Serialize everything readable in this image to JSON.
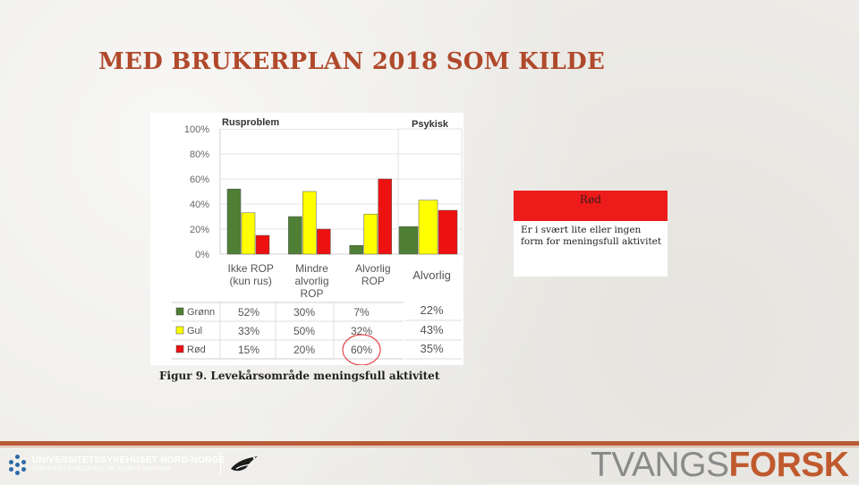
{
  "slide": {
    "title": "MED BRUKERPLAN 2018 SOM KILDE",
    "caption": "Figur 9. Levekårsområde meningsfull aktivitet"
  },
  "legend_box": {
    "heading": "Rød",
    "text_line1": "Er i svært lite eller ingen",
    "text_line2": "form for meningsfull aktivitet"
  },
  "footer": {
    "org_line1": "UNIVERSITETSSYKEHUSET NORD-NORGE",
    "org_line2": "UNIVERSITY HOSPITAL OF NORTH NORWAY",
    "brand_part1": "TVANGS",
    "brand_part2": "FORSK"
  },
  "chart_data": [
    {
      "type": "bar",
      "title": "Rusproblem",
      "categories": [
        [
          "Ikke ROP",
          "(kun rus)"
        ],
        [
          "Mindre",
          "alvorlig",
          "ROP"
        ],
        [
          "Alvorlig",
          "ROP"
        ]
      ],
      "series": [
        {
          "name": "Grønn",
          "color": "#4e7f35",
          "values": [
            52,
            30,
            7
          ],
          "labels": [
            "52%",
            "30%",
            "7%"
          ]
        },
        {
          "name": "Gul",
          "color": "#ffff00",
          "values": [
            33,
            50,
            32
          ],
          "labels": [
            "33%",
            "50%",
            "32%"
          ]
        },
        {
          "name": "Rød",
          "color": "#ee1111",
          "values": [
            15,
            20,
            60
          ],
          "labels": [
            "15%",
            "20%",
            "60%"
          ]
        }
      ],
      "yticks": [
        "100%",
        "80%",
        "60%",
        "40%",
        "20%",
        "0%"
      ],
      "ylim": [
        0,
        100
      ],
      "highlight": "Alvorlig ROP Rød 60%"
    },
    {
      "type": "bar",
      "title": "Psykisk",
      "categories": [
        [
          "Alvorlig"
        ]
      ],
      "series": [
        {
          "name": "Grønn",
          "color": "#4e7f35",
          "values": [
            22
          ],
          "labels": [
            "22%"
          ]
        },
        {
          "name": "Gul",
          "color": "#ffff00",
          "values": [
            43
          ],
          "labels": [
            "43%"
          ]
        },
        {
          "name": "Rød",
          "color": "#ee1111",
          "values": [
            35
          ],
          "labels": [
            "35%"
          ]
        }
      ],
      "ylim": [
        0,
        100
      ]
    }
  ],
  "colors": {
    "accent": "#b0492b",
    "footer_bar": "#b85a36",
    "brand_orange": "#c05a2e"
  }
}
